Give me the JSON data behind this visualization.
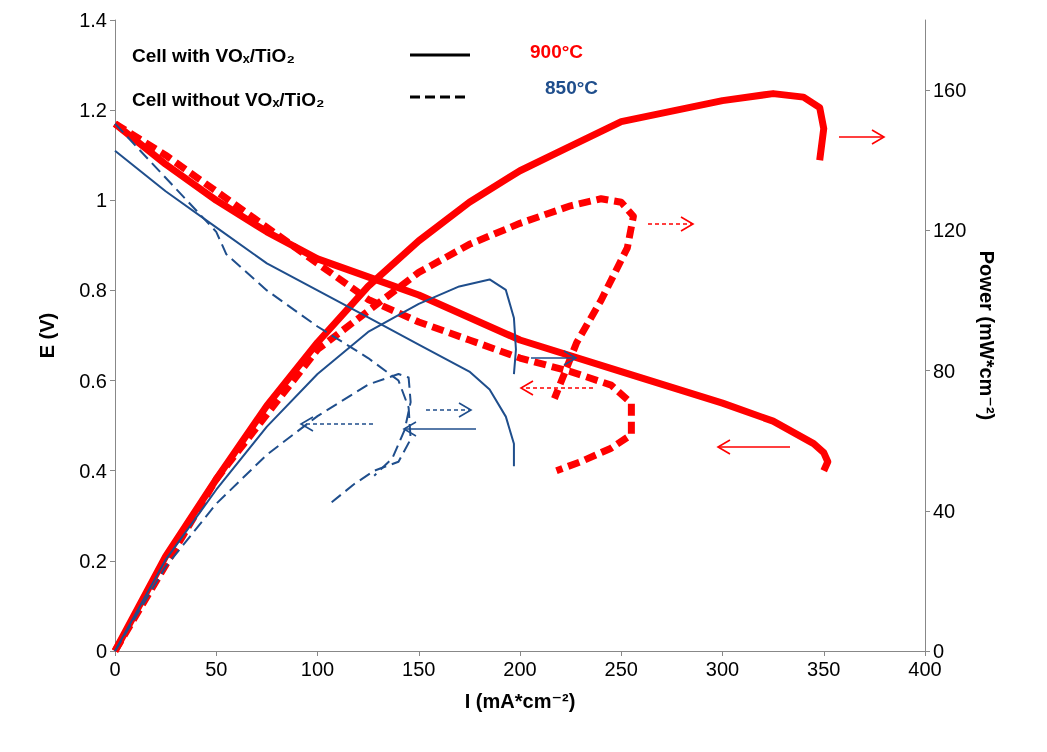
{
  "chart_data": {
    "type": "line",
    "xlabel": "I (mA*cm⁻²)",
    "ylabel": "E (V)",
    "y2label": "Power (mW*cm⁻²)",
    "xlim": [
      0,
      400
    ],
    "xticks": [
      0,
      50,
      100,
      150,
      200,
      250,
      300,
      350,
      400
    ],
    "ylim": [
      0,
      1.4
    ],
    "yticks": [
      0,
      0.2,
      0.4,
      0.6,
      0.8,
      1,
      1.2,
      1.4
    ],
    "y2lim": [
      0,
      180
    ],
    "y2ticks": [
      0,
      40,
      80,
      120,
      160
    ],
    "grid": false,
    "marker": "none",
    "annotations": [
      "Cell with VOₓ/TiO₂",
      "Cell without VOₓ/TiO₂",
      "900°C",
      "850°C"
    ],
    "series": [
      {
        "color": "#ff0000",
        "line_style": "solid",
        "x": [
          0,
          25,
          50,
          75,
          100,
          125,
          150,
          200,
          250,
          300,
          325,
          345,
          350,
          352,
          350
        ],
        "values": [
          1.17,
          1.08,
          1.0,
          0.93,
          0.87,
          0.83,
          0.79,
          0.69,
          0.62,
          0.55,
          0.51,
          0.46,
          0.44,
          0.42,
          0.4
        ]
      },
      {
        "color": "#ff0000",
        "line_style": "solid",
        "axis": "y2",
        "x": [
          0,
          25,
          50,
          75,
          100,
          125,
          150,
          175,
          200,
          225,
          250,
          275,
          300,
          325,
          340,
          348,
          350,
          348
        ],
        "values": [
          0,
          27,
          49,
          70,
          88,
          104,
          117,
          128,
          137,
          144,
          151,
          154,
          157,
          159,
          158,
          155,
          149,
          140
        ]
      },
      {
        "color": "#ff0000",
        "line_style": "dashed",
        "x": [
          0,
          25,
          50,
          75,
          100,
          125,
          150,
          175,
          200,
          225,
          245,
          255,
          255,
          245,
          230,
          218
        ],
        "values": [
          1.17,
          1.1,
          1.02,
          0.94,
          0.86,
          0.78,
          0.73,
          0.69,
          0.65,
          0.62,
          0.59,
          0.55,
          0.48,
          0.45,
          0.42,
          0.4
        ]
      },
      {
        "color": "#ff0000",
        "line_style": "dashed",
        "axis": "y2",
        "x": [
          0,
          50,
          100,
          150,
          175,
          200,
          225,
          240,
          250,
          256,
          253,
          240,
          228,
          217
        ],
        "values": [
          0,
          49,
          86,
          108,
          116,
          122,
          127,
          129,
          128,
          124,
          115,
          100,
          88,
          72
        ]
      },
      {
        "color": "#1f4e8c",
        "line_style": "solid",
        "x": [
          0,
          25,
          50,
          75,
          100,
          125,
          150,
          175,
          185,
          193,
          197,
          197
        ],
        "values": [
          1.11,
          1.02,
          0.94,
          0.86,
          0.8,
          0.74,
          0.68,
          0.62,
          0.58,
          0.52,
          0.46,
          0.41
        ]
      },
      {
        "color": "#1f4e8c",
        "line_style": "solid",
        "axis": "y2",
        "x": [
          0,
          25,
          50,
          75,
          100,
          125,
          150,
          170,
          185,
          193,
          197,
          198,
          197
        ],
        "values": [
          0,
          26,
          46,
          64,
          79,
          91,
          99,
          104,
          106,
          103,
          95,
          86,
          79
        ]
      },
      {
        "color": "#1f4e8c",
        "line_style": "dashed",
        "x": [
          0,
          25,
          50,
          55,
          75,
          100,
          125,
          140,
          145,
          146,
          140,
          128,
          118,
          107
        ],
        "values": [
          1.17,
          1.05,
          0.93,
          0.88,
          0.8,
          0.72,
          0.65,
          0.6,
          0.54,
          0.47,
          0.42,
          0.4,
          0.37,
          0.33
        ]
      },
      {
        "color": "#1f4e8c",
        "line_style": "dashed",
        "axis": "y2",
        "x": [
          0,
          25,
          50,
          75,
          100,
          125,
          140,
          145,
          146,
          143,
          137,
          128
        ],
        "values": [
          0,
          24,
          42,
          56,
          67,
          76,
          79,
          78,
          71,
          63,
          55,
          50
        ]
      }
    ]
  }
}
